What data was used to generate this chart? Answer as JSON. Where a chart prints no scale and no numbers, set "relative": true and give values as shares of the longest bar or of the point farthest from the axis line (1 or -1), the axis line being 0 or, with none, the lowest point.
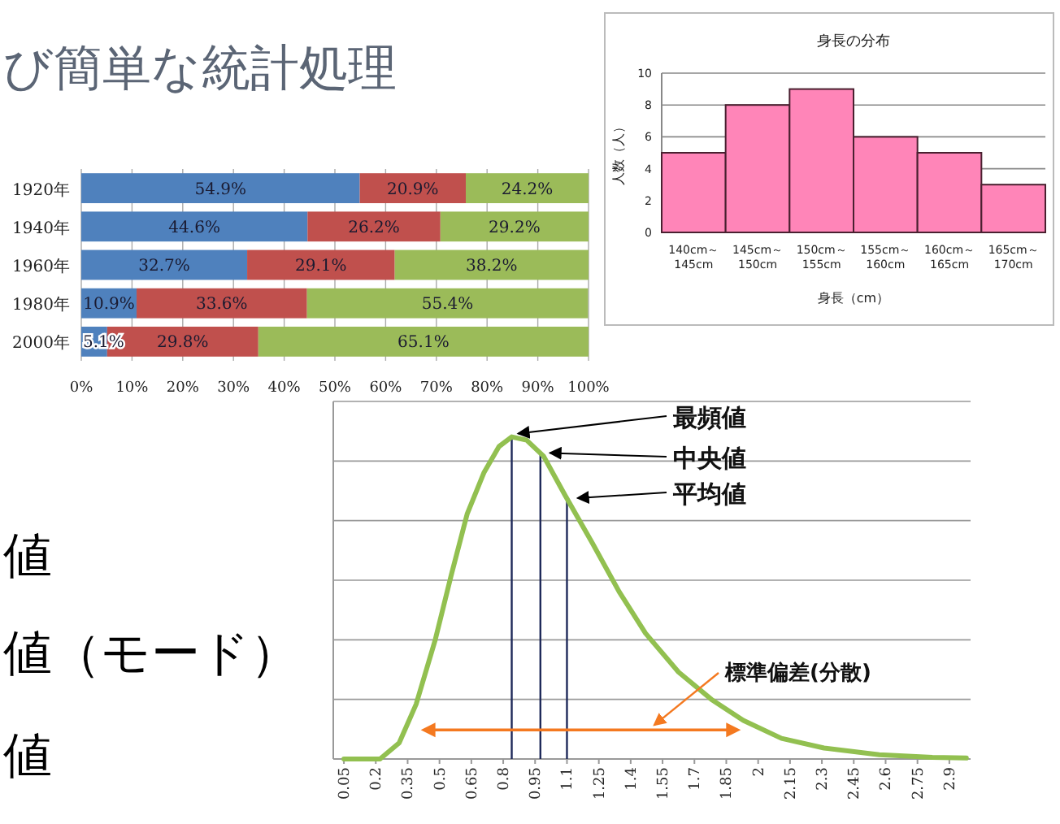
{
  "chart_data": [
    {
      "type": "other",
      "title": "び簡単な統計処理",
      "annotations": [
        "値",
        "値（モード）",
        "値"
      ]
    },
    {
      "type": "bar",
      "orientation": "horizontal",
      "stacked": true,
      "categories": [
        "1920年",
        "1940年",
        "1960年",
        "1980年",
        "2000年"
      ],
      "series": [
        {
          "color": "#4f81bd",
          "values": [
            54.9,
            44.6,
            32.7,
            10.9,
            5.1
          ],
          "value_labels": [
            "54.9%",
            "44.6%",
            "32.7%",
            "10.9%",
            "5.1%"
          ]
        },
        {
          "color": "#c0504d",
          "values": [
            20.9,
            26.2,
            29.1,
            33.6,
            29.8
          ],
          "value_labels": [
            "20.9%",
            "26.2%",
            "29.1%",
            "33.6%",
            "29.8%"
          ]
        },
        {
          "color": "#9bbb59",
          "values": [
            24.2,
            29.2,
            38.2,
            55.4,
            65.1
          ],
          "value_labels": [
            "24.2%",
            "29.2%",
            "38.2%",
            "55.4%",
            "65.1%"
          ]
        }
      ],
      "xlim": [
        0,
        100
      ],
      "xticks": [
        {
          "value": 0,
          "label": "0%"
        },
        {
          "value": 10,
          "label": "10%"
        },
        {
          "value": 20,
          "label": "20%"
        },
        {
          "value": 30,
          "label": "30%"
        },
        {
          "value": 40,
          "label": "40%"
        },
        {
          "value": 50,
          "label": "50%"
        },
        {
          "value": 60,
          "label": "60%"
        },
        {
          "value": 70,
          "label": "70%"
        },
        {
          "value": 80,
          "label": "80%"
        },
        {
          "value": 90,
          "label": "90%"
        },
        {
          "value": 100,
          "label": "100%"
        }
      ],
      "grid": "x"
    },
    {
      "type": "bar",
      "title": "身長の分布",
      "xlabel": "身長（cm）",
      "ylabel": "人数（人）",
      "categories": [
        "140cm～145cm",
        "145cm～150cm",
        "150cm～155cm",
        "155cm～160cm",
        "160cm～165cm",
        "165cm～170cm"
      ],
      "values": [
        5,
        8,
        9,
        6,
        5,
        3
      ],
      "color": "#ff85b8",
      "ylim": [
        0,
        10
      ],
      "yticks": [
        0,
        2,
        4,
        6,
        8,
        10
      ],
      "grid": "y"
    },
    {
      "type": "line",
      "relative": true,
      "x": [
        0.05,
        0.22,
        0.31,
        0.39,
        0.48,
        0.555,
        0.63,
        0.71,
        0.78,
        0.84,
        0.91,
        0.99,
        1.09,
        1.22,
        1.345,
        1.47,
        1.625,
        1.78,
        1.93,
        2.11,
        2.31,
        2.57,
        2.82,
        2.98
      ],
      "series": [
        {
          "color": "#92c050",
          "values": [
            0,
            0,
            0.05,
            0.17,
            0.37,
            0.57,
            0.76,
            0.89,
            0.97,
            1.0,
            0.99,
            0.94,
            0.82,
            0.67,
            0.52,
            0.39,
            0.27,
            0.185,
            0.12,
            0.064,
            0.034,
            0.013,
            0.005,
            0.003
          ]
        },
        {
          "type": "line",
          "color": "#f47920",
          "x": [
            0.45,
            1.88
          ],
          "values": [
            0.09,
            0.09
          ],
          "marker": "triangle"
        }
      ],
      "xlim": [
        0,
        3.0
      ],
      "xticks": [
        0.05,
        0.2,
        0.35,
        0.5,
        0.65,
        0.8,
        0.95,
        1.1,
        1.25,
        1.4,
        1.55,
        1.7,
        1.85,
        2,
        2.15,
        2.3,
        2.45,
        2.6,
        2.75,
        2.9
      ],
      "grid": "y",
      "ref_lines": [
        {
          "axis": "x",
          "value": 0.84,
          "color": "#1f2a5a"
        },
        {
          "axis": "x",
          "value": 0.975,
          "color": "#1f2a5a"
        },
        {
          "axis": "x",
          "value": 1.1,
          "color": "#1f2a5a"
        }
      ],
      "annotations": [
        {
          "text": "標準偏差(分散)",
          "x": 1.48,
          "y": 0.09
        },
        {
          "text": "最頻値",
          "x": 0.84,
          "y": 1.0
        },
        {
          "text": "中央値",
          "x": 0.99,
          "y": 0.94
        },
        {
          "text": "平均値",
          "x": 1.12,
          "y": 0.8
        }
      ]
    }
  ]
}
